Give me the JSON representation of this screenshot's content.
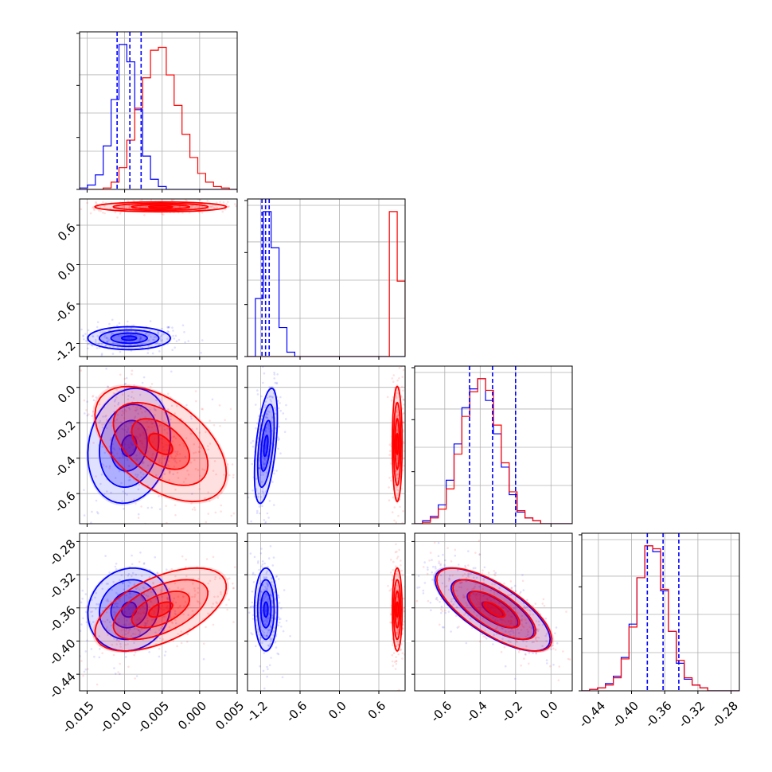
{
  "chart_data": {
    "type": "corner",
    "colors": {
      "blue": "#0000ff",
      "red": "#ff0000"
    },
    "grid": true,
    "legend": "none",
    "parameters": [
      {
        "range": [
          -0.016,
          0.005
        ],
        "ticks": [
          "-0.015",
          "-0.010",
          "-0.005",
          "0.000",
          "0.005"
        ],
        "tick_values": [
          -0.015,
          -0.01,
          -0.005,
          0.0,
          0.005
        ]
      },
      {
        "range": [
          -1.4,
          1.0
        ],
        "ticks": [
          "-1.2",
          "-0.6",
          "0.0",
          "0.6"
        ],
        "tick_values": [
          -1.2,
          -0.6,
          0.0,
          0.6
        ]
      },
      {
        "range": [
          -0.77,
          0.12
        ],
        "ticks": [
          "-0.6",
          "-0.4",
          "-0.2",
          "0.0"
        ],
        "tick_values": [
          -0.6,
          -0.4,
          -0.2,
          0.0
        ]
      },
      {
        "range": [
          -0.46,
          -0.27
        ],
        "ticks": [
          "-0.44",
          "-0.40",
          "-0.36",
          "-0.32",
          "-0.28"
        ],
        "tick_values": [
          -0.44,
          -0.4,
          -0.36,
          -0.32,
          -0.28
        ]
      }
    ],
    "series": [
      {
        "color": "blue",
        "means": [
          -0.0094,
          -1.12,
          -0.33,
          -0.362
        ],
        "stds": [
          0.0022,
          0.07,
          0.13,
          0.02
        ],
        "quantiles": [
          [
            -0.011,
            -0.0093,
            -0.0078
          ],
          [
            -1.18,
            -1.125,
            -1.07
          ],
          [
            -0.46,
            -0.33,
            -0.2
          ],
          [
            -0.381,
            -0.362,
            -0.343
          ]
        ],
        "histograms": [
          [
            0.01,
            0.03,
            0.1,
            0.3,
            0.62,
            1.0,
            0.88,
            0.55,
            0.23,
            0.07,
            0.02,
            0.0,
            0.0,
            0.0,
            0.0,
            0.0,
            0.0,
            0.0,
            0.0,
            0.0
          ],
          [
            0.0,
            0.4,
            1.0,
            0.75,
            0.2,
            0.03,
            0.0,
            0.0,
            0.0,
            0.0,
            0.0,
            0.0,
            0.0,
            0.0,
            0.0,
            0.0,
            0.0,
            0.0,
            0.0,
            0.0
          ],
          [
            0.0,
            0.02,
            0.05,
            0.13,
            0.3,
            0.55,
            0.8,
            0.93,
            1.0,
            0.85,
            0.62,
            0.39,
            0.2,
            0.08,
            0.04,
            0.02,
            0.0,
            0.0,
            0.0,
            0.0
          ],
          [
            0.0,
            0.01,
            0.02,
            0.05,
            0.1,
            0.23,
            0.46,
            0.78,
            1.0,
            0.96,
            0.69,
            0.41,
            0.19,
            0.08,
            0.04,
            0.02,
            0.0,
            0.0,
            0.0,
            0.0
          ]
        ]
      },
      {
        "color": "red",
        "means": [
          -0.0052,
          0.88,
          -0.32,
          -0.362
        ],
        "stds": [
          0.0035,
          0.03,
          0.13,
          0.02
        ],
        "quantiles": [],
        "histograms": [
          [
            0.0,
            0.0,
            0.0,
            0.01,
            0.05,
            0.15,
            0.34,
            0.56,
            0.77,
            0.96,
            0.98,
            0.79,
            0.58,
            0.38,
            0.22,
            0.11,
            0.05,
            0.02,
            0.01,
            0.0
          ],
          [
            0.0,
            0.0,
            0.0,
            0.0,
            0.0,
            0.0,
            0.0,
            0.0,
            0.0,
            0.0,
            0.0,
            0.0,
            0.0,
            0.0,
            0.0,
            0.0,
            0.0,
            0.0,
            1.0,
            0.52
          ],
          [
            0.0,
            0.01,
            0.04,
            0.1,
            0.24,
            0.48,
            0.74,
            0.91,
            1.0,
            0.92,
            0.68,
            0.42,
            0.22,
            0.09,
            0.04,
            0.02,
            0.0,
            0.0,
            0.0,
            0.0
          ],
          [
            0.0,
            0.01,
            0.02,
            0.04,
            0.09,
            0.22,
            0.44,
            0.78,
            1.0,
            0.98,
            0.7,
            0.41,
            0.21,
            0.09,
            0.04,
            0.02,
            0.0,
            0.0,
            0.0,
            0.0
          ]
        ]
      }
    ],
    "correlations": {
      "blue": {
        "1-0": 0.0,
        "2-0": 0.15,
        "2-1": 0.5,
        "3-0": 0.1,
        "3-1": 0.0,
        "3-2": -0.72
      },
      "red": {
        "1-0": 0.0,
        "2-0": -0.5,
        "2-1": 0.0,
        "3-0": 0.55,
        "3-1": 0.0,
        "3-2": -0.72
      }
    }
  }
}
